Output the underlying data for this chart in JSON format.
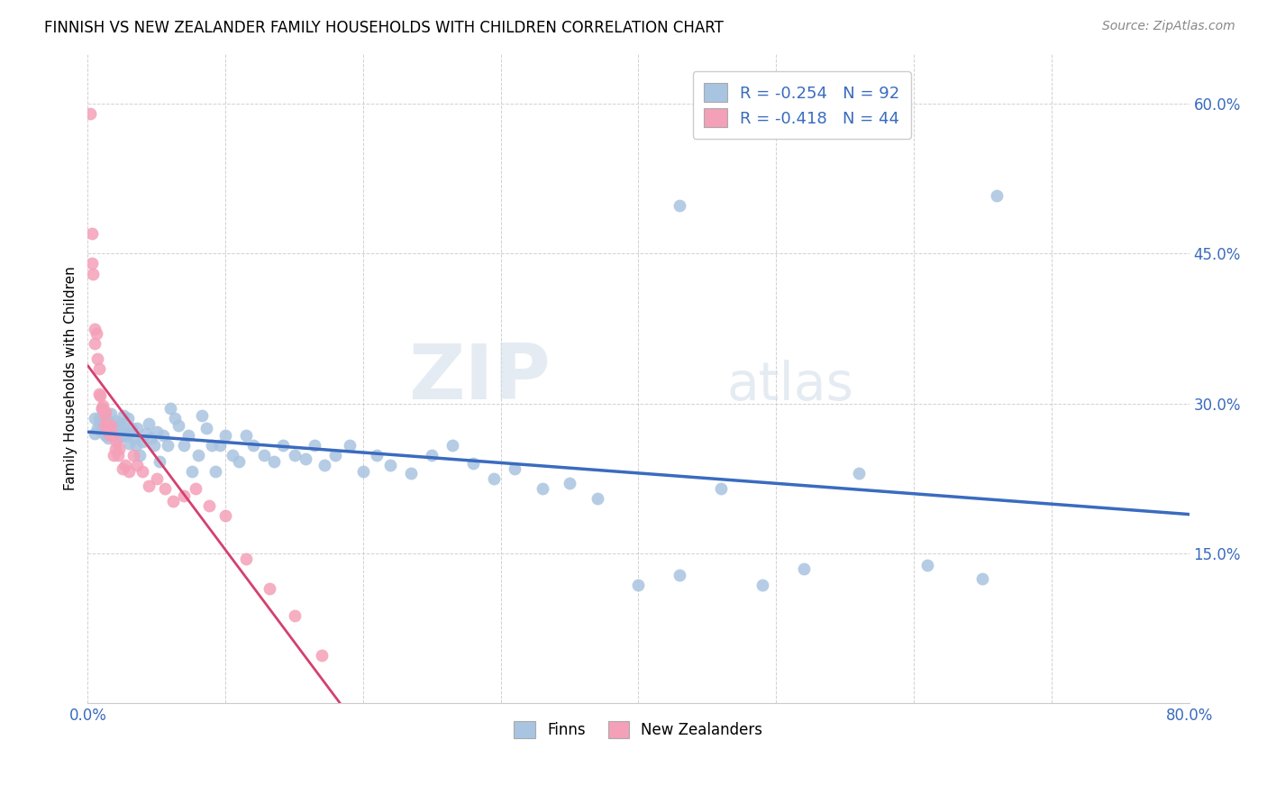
{
  "title": "FINNISH VS NEW ZEALANDER FAMILY HOUSEHOLDS WITH CHILDREN CORRELATION CHART",
  "source": "Source: ZipAtlas.com",
  "ylabel": "Family Households with Children",
  "x_min": 0.0,
  "x_max": 0.8,
  "y_min": 0.0,
  "y_max": 0.65,
  "y_ticks": [
    0.0,
    0.15,
    0.3,
    0.45,
    0.6
  ],
  "finn_R": -0.254,
  "finn_N": 92,
  "nz_R": -0.418,
  "nz_N": 44,
  "finn_color": "#a8c4e0",
  "nz_color": "#f4a0b8",
  "finn_line_color": "#3a6bbf",
  "nz_line_color": "#d44070",
  "watermark_zip": "ZIP",
  "watermark_atlas": "atlas",
  "legend_finn": "Finns",
  "legend_nz": "New Zealanders",
  "finn_x": [
    0.005,
    0.005,
    0.007,
    0.008,
    0.009,
    0.01,
    0.01,
    0.012,
    0.013,
    0.014,
    0.015,
    0.015,
    0.016,
    0.017,
    0.018,
    0.019,
    0.02,
    0.02,
    0.021,
    0.022,
    0.022,
    0.023,
    0.024,
    0.025,
    0.026,
    0.026,
    0.027,
    0.028,
    0.029,
    0.03,
    0.032,
    0.033,
    0.035,
    0.036,
    0.038,
    0.04,
    0.042,
    0.044,
    0.046,
    0.048,
    0.05,
    0.052,
    0.055,
    0.058,
    0.06,
    0.063,
    0.066,
    0.07,
    0.073,
    0.076,
    0.08,
    0.083,
    0.086,
    0.09,
    0.093,
    0.096,
    0.1,
    0.105,
    0.11,
    0.115,
    0.12,
    0.128,
    0.135,
    0.142,
    0.15,
    0.158,
    0.165,
    0.172,
    0.18,
    0.19,
    0.2,
    0.21,
    0.22,
    0.235,
    0.25,
    0.265,
    0.28,
    0.295,
    0.31,
    0.33,
    0.35,
    0.37,
    0.4,
    0.43,
    0.46,
    0.49,
    0.52,
    0.56,
    0.61,
    0.65,
    0.43,
    0.66
  ],
  "finn_y": [
    0.27,
    0.285,
    0.275,
    0.285,
    0.28,
    0.272,
    0.295,
    0.278,
    0.268,
    0.282,
    0.275,
    0.265,
    0.28,
    0.29,
    0.273,
    0.268,
    0.276,
    0.283,
    0.272,
    0.278,
    0.265,
    0.28,
    0.272,
    0.268,
    0.276,
    0.288,
    0.272,
    0.268,
    0.285,
    0.26,
    0.275,
    0.265,
    0.258,
    0.275,
    0.248,
    0.262,
    0.27,
    0.28,
    0.265,
    0.258,
    0.272,
    0.242,
    0.268,
    0.258,
    0.295,
    0.285,
    0.278,
    0.258,
    0.268,
    0.232,
    0.248,
    0.288,
    0.275,
    0.258,
    0.232,
    0.258,
    0.268,
    0.248,
    0.242,
    0.268,
    0.258,
    0.248,
    0.242,
    0.258,
    0.248,
    0.245,
    0.258,
    0.238,
    0.248,
    0.258,
    0.232,
    0.248,
    0.238,
    0.23,
    0.248,
    0.258,
    0.24,
    0.225,
    0.235,
    0.215,
    0.22,
    0.205,
    0.118,
    0.128,
    0.215,
    0.118,
    0.135,
    0.23,
    0.138,
    0.125,
    0.498,
    0.508
  ],
  "nz_x": [
    0.002,
    0.003,
    0.003,
    0.004,
    0.005,
    0.005,
    0.006,
    0.007,
    0.008,
    0.008,
    0.009,
    0.01,
    0.011,
    0.012,
    0.012,
    0.013,
    0.014,
    0.015,
    0.016,
    0.017,
    0.018,
    0.019,
    0.02,
    0.021,
    0.022,
    0.023,
    0.025,
    0.027,
    0.03,
    0.033,
    0.036,
    0.04,
    0.044,
    0.05,
    0.056,
    0.062,
    0.07,
    0.078,
    0.088,
    0.1,
    0.115,
    0.132,
    0.15,
    0.17
  ],
  "nz_y": [
    0.59,
    0.47,
    0.44,
    0.43,
    0.375,
    0.36,
    0.37,
    0.345,
    0.335,
    0.31,
    0.308,
    0.295,
    0.298,
    0.288,
    0.278,
    0.292,
    0.278,
    0.272,
    0.268,
    0.278,
    0.268,
    0.248,
    0.255,
    0.262,
    0.248,
    0.255,
    0.235,
    0.238,
    0.232,
    0.248,
    0.238,
    0.232,
    0.218,
    0.225,
    0.215,
    0.202,
    0.208,
    0.215,
    0.198,
    0.188,
    0.145,
    0.115,
    0.088,
    0.048
  ]
}
